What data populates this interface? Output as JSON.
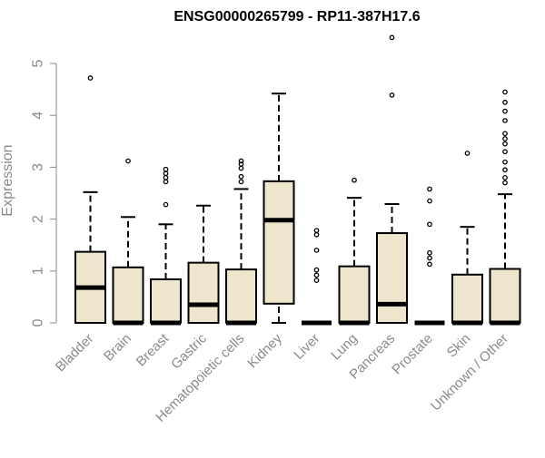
{
  "chart_data": {
    "type": "box",
    "title": "ENSG00000265799 - RP11-387H17.6",
    "ylabel": "Expression",
    "xlabel": "",
    "ylim": [
      0,
      5
    ],
    "yticks": [
      0,
      1,
      2,
      3,
      4,
      5
    ],
    "grid": false,
    "colors": {
      "box_fill": "#ede6cd",
      "box_stroke": "#000000",
      "axis": "#8a8a8a",
      "labels": "#8a8a8a"
    },
    "categories": [
      "Bladder",
      "Brain",
      "Breast",
      "Gastric",
      "Hematopoietic cells",
      "Kidney",
      "Liver",
      "Lung",
      "Pancreas",
      "Prostate",
      "Skin",
      "Unknown / Other"
    ],
    "boxes": [
      {
        "category": "Bladder",
        "q1": 0.0,
        "median": 0.68,
        "q3": 1.37,
        "whisker_low": 0.0,
        "whisker_high": 2.52,
        "outliers": [
          4.72
        ]
      },
      {
        "category": "Brain",
        "q1": 0.0,
        "median": 0.0,
        "q3": 1.07,
        "whisker_low": 0.0,
        "whisker_high": 2.04,
        "outliers": [
          3.12
        ]
      },
      {
        "category": "Breast",
        "q1": 0.0,
        "median": 0.0,
        "q3": 0.84,
        "whisker_low": 0.0,
        "whisker_high": 1.9,
        "outliers": [
          2.28,
          2.72,
          2.8,
          2.88,
          2.96
        ]
      },
      {
        "category": "Gastric",
        "q1": 0.0,
        "median": 0.35,
        "q3": 1.16,
        "whisker_low": 0.0,
        "whisker_high": 2.26,
        "outliers": []
      },
      {
        "category": "Hematopoietic cells",
        "q1": 0.0,
        "median": 0.0,
        "q3": 1.03,
        "whisker_low": 0.0,
        "whisker_high": 2.58,
        "outliers": [
          2.72,
          2.82,
          2.98,
          3.06,
          3.12
        ]
      },
      {
        "category": "Kidney",
        "q1": 0.37,
        "median": 1.98,
        "q3": 2.73,
        "whisker_low": 0.0,
        "whisker_high": 4.42,
        "outliers": []
      },
      {
        "category": "Liver",
        "q1": 0.0,
        "median": 0.0,
        "q3": 0.0,
        "whisker_low": 0.0,
        "whisker_high": 0.0,
        "outliers": [
          0.82,
          0.92,
          1.02,
          1.4,
          1.7,
          1.78
        ]
      },
      {
        "category": "Lung",
        "q1": 0.0,
        "median": 0.0,
        "q3": 1.09,
        "whisker_low": 0.0,
        "whisker_high": 2.41,
        "outliers": [
          2.75
        ]
      },
      {
        "category": "Pancreas",
        "q1": 0.0,
        "median": 0.36,
        "q3": 1.73,
        "whisker_low": 0.0,
        "whisker_high": 2.29,
        "outliers": [
          4.39,
          5.5
        ]
      },
      {
        "category": "Prostate",
        "q1": 0.0,
        "median": 0.0,
        "q3": 0.0,
        "whisker_low": 0.0,
        "whisker_high": 0.0,
        "outliers": [
          1.13,
          1.25,
          1.35,
          1.9,
          2.35,
          2.58
        ]
      },
      {
        "category": "Skin",
        "q1": 0.0,
        "median": 0.0,
        "q3": 0.93,
        "whisker_low": 0.0,
        "whisker_high": 1.85,
        "outliers": [
          3.27
        ]
      },
      {
        "category": "Unknown / Other",
        "q1": 0.0,
        "median": 0.0,
        "q3": 1.04,
        "whisker_low": 0.0,
        "whisker_high": 2.48,
        "outliers": [
          2.7,
          2.8,
          2.95,
          3.1,
          3.3,
          3.45,
          3.55,
          3.65,
          3.9,
          4.08,
          4.25,
          4.45
        ]
      }
    ]
  }
}
